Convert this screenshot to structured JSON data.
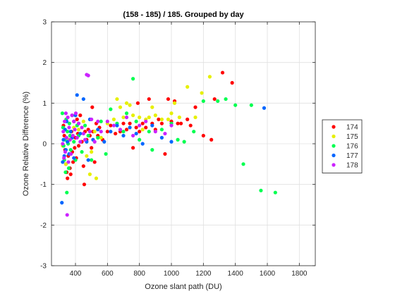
{
  "chart_data": {
    "type": "scatter",
    "title": "(158 - 185) / 185.  Grouped by day",
    "xlabel": "Ozone slant path (DU)",
    "ylabel": "Ozone Relative Difference (%)",
    "xlim": [
      250,
      1900
    ],
    "ylim": [
      -3,
      3
    ],
    "xticks": [
      400,
      600,
      800,
      1000,
      1200,
      1400,
      1600,
      1800
    ],
    "yticks": [
      -3,
      -2,
      -1,
      0,
      1,
      2,
      3
    ],
    "grid": true,
    "legend_position": "right",
    "series": [
      {
        "name": "174",
        "color": "#ff0000",
        "points": [
          [
            325,
            0.45
          ],
          [
            330,
            0.2
          ],
          [
            335,
            -0.15
          ],
          [
            340,
            -0.5
          ],
          [
            345,
            -0.7
          ],
          [
            350,
            -0.85
          ],
          [
            355,
            -0.3
          ],
          [
            360,
            0.1
          ],
          [
            365,
            -0.6
          ],
          [
            370,
            -0.75
          ],
          [
            375,
            0.3
          ],
          [
            380,
            -0.2
          ],
          [
            385,
            -0.45
          ],
          [
            390,
            0.55
          ],
          [
            395,
            -0.1
          ],
          [
            400,
            0.15
          ],
          [
            405,
            -0.35
          ],
          [
            410,
            0.6
          ],
          [
            415,
            0.25
          ],
          [
            420,
            -0.05
          ],
          [
            430,
            0.7
          ],
          [
            440,
            0.05
          ],
          [
            450,
            -0.55
          ],
          [
            455,
            -1.0
          ],
          [
            460,
            0.3
          ],
          [
            470,
            0.1
          ],
          [
            480,
            0.35
          ],
          [
            490,
            0.2
          ],
          [
            500,
            -0.1
          ],
          [
            505,
            0.9
          ],
          [
            510,
            0.3
          ],
          [
            520,
            -0.45
          ],
          [
            530,
            0.5
          ],
          [
            540,
            0.2
          ],
          [
            550,
            0.4
          ],
          [
            570,
            0.1
          ],
          [
            600,
            0.3
          ],
          [
            620,
            0.45
          ],
          [
            650,
            0.25
          ],
          [
            680,
            0.3
          ],
          [
            700,
            0.5
          ],
          [
            720,
            0.35
          ],
          [
            740,
            0.5
          ],
          [
            760,
            -0.1
          ],
          [
            780,
            0.4
          ],
          [
            790,
            1.0
          ],
          [
            800,
            0.3
          ],
          [
            820,
            0.5
          ],
          [
            840,
            0.4
          ],
          [
            860,
            1.1
          ],
          [
            880,
            0.5
          ],
          [
            900,
            0.35
          ],
          [
            920,
            0.6
          ],
          [
            940,
            0.5
          ],
          [
            960,
            -0.25
          ],
          [
            980,
            1.1
          ],
          [
            1000,
            0.55
          ],
          [
            1020,
            1.05
          ],
          [
            1040,
            0.5
          ],
          [
            1060,
            0.5
          ],
          [
            1100,
            0.6
          ],
          [
            1120,
            0.45
          ],
          [
            1150,
            0.9
          ],
          [
            1200,
            0.2
          ],
          [
            1250,
            0.1
          ],
          [
            1270,
            1.1
          ],
          [
            1320,
            1.75
          ],
          [
            1380,
            1.5
          ]
        ]
      },
      {
        "name": "175",
        "color": "#e6f000",
        "points": [
          [
            320,
            -0.05
          ],
          [
            340,
            -0.5
          ],
          [
            360,
            0.1
          ],
          [
            390,
            0.4
          ],
          [
            420,
            0.35
          ],
          [
            450,
            0.55
          ],
          [
            470,
            -0.3
          ],
          [
            490,
            -0.75
          ],
          [
            500,
            -0.2
          ],
          [
            520,
            0.3
          ],
          [
            530,
            -0.85
          ],
          [
            560,
            0.15
          ],
          [
            600,
            0.5
          ],
          [
            640,
            0.6
          ],
          [
            660,
            1.1
          ],
          [
            680,
            0.9
          ],
          [
            700,
            0.65
          ],
          [
            720,
            1.0
          ],
          [
            740,
            0.95
          ],
          [
            760,
            0.7
          ],
          [
            800,
            0.65
          ],
          [
            820,
            0.35
          ],
          [
            840,
            0.6
          ],
          [
            860,
            0.65
          ],
          [
            880,
            0.9
          ],
          [
            900,
            0.7
          ],
          [
            940,
            0.6
          ],
          [
            980,
            0.6
          ],
          [
            1000,
            0.75
          ],
          [
            1020,
            1.0
          ],
          [
            1050,
            0.65
          ],
          [
            1100,
            1.4
          ],
          [
            1150,
            0.65
          ],
          [
            1190,
            1.25
          ],
          [
            1240,
            1.65
          ]
        ]
      },
      {
        "name": "176",
        "color": "#00ff50",
        "points": [
          [
            318,
            0.75
          ],
          [
            322,
            0.4
          ],
          [
            326,
            -0.05
          ],
          [
            330,
            -0.4
          ],
          [
            334,
            0.1
          ],
          [
            338,
            -0.7
          ],
          [
            342,
            0.6
          ],
          [
            346,
            -1.2
          ],
          [
            350,
            0.3
          ],
          [
            354,
            0.0
          ],
          [
            358,
            -0.6
          ],
          [
            362,
            0.5
          ],
          [
            366,
            0.2
          ],
          [
            370,
            -0.15
          ],
          [
            380,
            0.7
          ],
          [
            390,
            0.05
          ],
          [
            400,
            -0.4
          ],
          [
            410,
            0.45
          ],
          [
            420,
            0.2
          ],
          [
            440,
            -0.2
          ],
          [
            460,
            0.45
          ],
          [
            480,
            0.2
          ],
          [
            500,
            -0.4
          ],
          [
            540,
            0.15
          ],
          [
            560,
            0.55
          ],
          [
            590,
            -0.25
          ],
          [
            620,
            0.85
          ],
          [
            660,
            0.5
          ],
          [
            700,
            0.3
          ],
          [
            720,
            0.75
          ],
          [
            760,
            1.6
          ],
          [
            780,
            0.55
          ],
          [
            800,
            0.1
          ],
          [
            860,
            0.3
          ],
          [
            880,
            -0.15
          ],
          [
            940,
            0.35
          ],
          [
            1000,
            0.5
          ],
          [
            1040,
            0.1
          ],
          [
            1080,
            0.05
          ],
          [
            1140,
            0.3
          ],
          [
            1200,
            1.05
          ],
          [
            1290,
            1.05
          ],
          [
            1340,
            1.1
          ],
          [
            1400,
            0.95
          ],
          [
            1450,
            -0.5
          ],
          [
            1500,
            0.95
          ],
          [
            1560,
            -1.15
          ],
          [
            1650,
            -1.2
          ]
        ]
      },
      {
        "name": "177",
        "color": "#0066ff",
        "points": [
          [
            315,
            -1.45
          ],
          [
            320,
            -0.45
          ],
          [
            325,
            0.1
          ],
          [
            330,
            -0.3
          ],
          [
            335,
            0.35
          ],
          [
            340,
            -0.15
          ],
          [
            345,
            0.55
          ],
          [
            350,
            0.05
          ],
          [
            360,
            -0.25
          ],
          [
            370,
            0.3
          ],
          [
            380,
            0.15
          ],
          [
            390,
            -0.35
          ],
          [
            400,
            0.7
          ],
          [
            410,
            1.2
          ],
          [
            420,
            0.5
          ],
          [
            430,
            0.25
          ],
          [
            450,
            1.1
          ],
          [
            470,
            0.05
          ],
          [
            480,
            -0.4
          ],
          [
            490,
            0.6
          ],
          [
            510,
            0.1
          ],
          [
            540,
            0.35
          ],
          [
            580,
            0.05
          ],
          [
            620,
            0.3
          ],
          [
            660,
            0.45
          ],
          [
            700,
            0.2
          ],
          [
            740,
            0.4
          ],
          [
            780,
            0.25
          ],
          [
            820,
            0.0
          ],
          [
            880,
            0.45
          ],
          [
            940,
            0.15
          ],
          [
            1000,
            0.05
          ],
          [
            1580,
            0.88
          ]
        ]
      },
      {
        "name": "178",
        "color": "#cc22ff",
        "points": [
          [
            320,
            0.0
          ],
          [
            324,
            0.3
          ],
          [
            328,
            -0.35
          ],
          [
            332,
            0.55
          ],
          [
            336,
            -0.2
          ],
          [
            340,
            0.75
          ],
          [
            344,
            0.15
          ],
          [
            348,
            -1.75
          ],
          [
            352,
            0.65
          ],
          [
            356,
            -0.45
          ],
          [
            360,
            0.4
          ],
          [
            366,
            0.1
          ],
          [
            372,
            -0.25
          ],
          [
            378,
            0.7
          ],
          [
            384,
            0.2
          ],
          [
            390,
            0.55
          ],
          [
            396,
            0.35
          ],
          [
            402,
            0.75
          ],
          [
            410,
            0.15
          ],
          [
            420,
            0.5
          ],
          [
            430,
            0.05
          ],
          [
            440,
            0.4
          ],
          [
            450,
            0.25
          ],
          [
            460,
            0.1
          ],
          [
            470,
            1.7
          ],
          [
            480,
            1.68
          ],
          [
            490,
            0.3
          ],
          [
            500,
            0.6
          ],
          [
            520,
            0.05
          ],
          [
            540,
            0.55
          ],
          [
            560,
            0.3
          ],
          [
            600,
            0.55
          ],
          [
            640,
            0.45
          ],
          [
            680,
            0.35
          ],
          [
            720,
            0.65
          ],
          [
            760,
            0.2
          ],
          [
            800,
            0.45
          ],
          [
            840,
            0.55
          ],
          [
            900,
            0.3
          ],
          [
            960,
            0.25
          ],
          [
            1000,
            0.45
          ]
        ]
      }
    ]
  }
}
